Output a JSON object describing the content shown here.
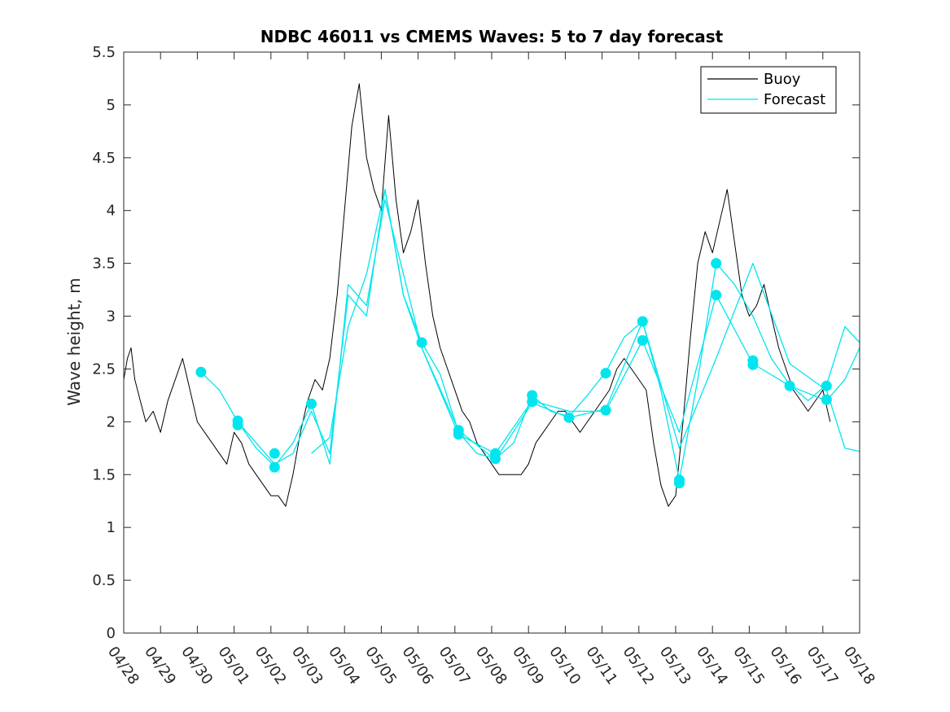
{
  "chart_data": {
    "type": "line",
    "title": "NDBC 46011 vs CMEMS Waves: 5 to 7 day forecast",
    "xlabel": "",
    "ylabel": "Wave height, m",
    "xlim": [
      "04/28",
      "05/18"
    ],
    "ylim": [
      0,
      5.5
    ],
    "yticks": [
      0,
      0.5,
      1,
      1.5,
      2,
      2.5,
      3,
      3.5,
      4,
      4.5,
      5,
      5.5
    ],
    "xtick_labels": [
      "04/28",
      "04/29",
      "04/30",
      "05/01",
      "05/02",
      "05/03",
      "05/04",
      "05/05",
      "05/06",
      "05/07",
      "05/08",
      "05/09",
      "05/10",
      "05/11",
      "05/12",
      "05/13",
      "05/14",
      "05/15",
      "05/16",
      "05/17",
      "05/18"
    ],
    "grid": false,
    "legend": {
      "position": "top-right",
      "entries": [
        {
          "label": "Buoy",
          "color": "#000000"
        },
        {
          "label": "Forecast",
          "color": "#00e5ee"
        }
      ]
    },
    "series": [
      {
        "name": "Buoy",
        "color": "#000000",
        "x": [
          0,
          0.1,
          0.2,
          0.3,
          0.45,
          0.6,
          0.8,
          1.0,
          1.2,
          1.4,
          1.6,
          1.8,
          2.0,
          2.2,
          2.4,
          2.6,
          2.8,
          3.0,
          3.2,
          3.4,
          3.6,
          3.8,
          4.0,
          4.2,
          4.4,
          4.6,
          4.8,
          5.0,
          5.2,
          5.4,
          5.6,
          5.8,
          6.0,
          6.2,
          6.4,
          6.6,
          6.8,
          7.0,
          7.2,
          7.4,
          7.6,
          7.8,
          8.0,
          8.2,
          8.4,
          8.6,
          8.8,
          9.0,
          9.2,
          9.4,
          9.6,
          9.8,
          10.0,
          10.2,
          10.4,
          10.6,
          10.8,
          11.0,
          11.2,
          11.4,
          11.6,
          11.8,
          12.0,
          12.2,
          12.4,
          12.6,
          12.8,
          13.0,
          13.2,
          13.4,
          13.6,
          13.8,
          14.0,
          14.2,
          14.4,
          14.6,
          14.8,
          15.0,
          15.2,
          15.4,
          15.6,
          15.8,
          16.0,
          16.2,
          16.4,
          16.6,
          16.8,
          17.0,
          17.2,
          17.4,
          17.6,
          17.8,
          18.0,
          18.2,
          18.4,
          18.6,
          18.8,
          19.0,
          19.2
        ],
        "y": [
          2.4,
          2.6,
          2.7,
          2.4,
          2.2,
          2.0,
          2.1,
          1.9,
          2.2,
          2.4,
          2.6,
          2.3,
          2.0,
          1.9,
          1.8,
          1.7,
          1.6,
          1.9,
          1.8,
          1.6,
          1.5,
          1.4,
          1.3,
          1.3,
          1.2,
          1.5,
          1.9,
          2.2,
          2.4,
          2.3,
          2.6,
          3.2,
          4.0,
          4.8,
          5.2,
          4.5,
          4.2,
          4.0,
          4.9,
          4.1,
          3.6,
          3.8,
          4.1,
          3.5,
          3.0,
          2.7,
          2.5,
          2.3,
          2.1,
          2.0,
          1.8,
          1.7,
          1.6,
          1.5,
          1.5,
          1.5,
          1.5,
          1.6,
          1.8,
          1.9,
          2.0,
          2.1,
          2.1,
          2.0,
          1.9,
          2.0,
          2.1,
          2.2,
          2.3,
          2.5,
          2.6,
          2.5,
          2.4,
          2.3,
          1.8,
          1.4,
          1.2,
          1.3,
          2.0,
          2.8,
          3.5,
          3.8,
          3.6,
          3.9,
          4.2,
          3.7,
          3.2,
          3.0,
          3.1,
          3.3,
          3.0,
          2.7,
          2.5,
          2.3,
          2.2,
          2.1,
          2.2,
          2.3,
          2.0
        ]
      },
      {
        "name": "Forecast",
        "color": "#00e5ee",
        "x": [
          2.1,
          2.6,
          3.1,
          3.6,
          4.1,
          4.6,
          5.1,
          5.6,
          6.1,
          6.6,
          7.1,
          7.6,
          8.1,
          8.6,
          9.1,
          9.6,
          10.1,
          10.6,
          11.1,
          11.6,
          12.1,
          12.6,
          13.1,
          13.6,
          14.1,
          14.6,
          15.1,
          15.6,
          16.1,
          16.6,
          17.1,
          17.6,
          18.1,
          18.6,
          19.1,
          19.6,
          20.0
        ],
        "y": [
          2.47,
          2.3,
          2.0,
          1.8,
          1.6,
          1.7,
          2.1,
          1.7,
          3.2,
          3.0,
          4.2,
          3.2,
          2.75,
          2.45,
          1.9,
          1.7,
          1.65,
          1.8,
          2.25,
          2.1,
          2.05,
          2.25,
          2.47,
          2.8,
          2.95,
          2.3,
          1.45,
          2.4,
          3.5,
          3.3,
          3.0,
          2.6,
          2.35,
          2.2,
          2.35,
          2.9,
          2.75
        ]
      },
      {
        "name": "Forecast",
        "color": "#00e5ee",
        "x": [
          3.1,
          3.6,
          4.1,
          4.6,
          5.1,
          5.6,
          6.1,
          6.6,
          7.1,
          8.1,
          9.1,
          10.1,
          11.1,
          12.1,
          13.1,
          14.1,
          15.1,
          16.1,
          17.1,
          18.1,
          19.1,
          19.6,
          20.0
        ],
        "y": [
          2.0,
          1.75,
          1.58,
          1.8,
          2.17,
          1.6,
          3.3,
          3.1,
          4.1,
          2.7,
          1.88,
          1.7,
          2.2,
          2.1,
          2.1,
          2.77,
          1.9,
          3.2,
          2.55,
          2.34,
          2.2,
          2.4,
          2.7
        ]
      },
      {
        "name": "Forecast",
        "color": "#00e5ee",
        "x": [
          5.1,
          5.6,
          6.1,
          6.6,
          7.1,
          7.6,
          8.1,
          9.1,
          10.1,
          11.1,
          12.1,
          13.1,
          14.1,
          15.1,
          16.1,
          17.1,
          18.1,
          19.1,
          19.6,
          20.0
        ],
        "y": [
          1.7,
          1.85,
          2.9,
          3.4,
          4.2,
          3.2,
          2.7,
          1.92,
          1.64,
          2.18,
          2.04,
          2.12,
          2.95,
          1.75,
          2.6,
          3.5,
          2.55,
          2.3,
          1.75,
          1.72
        ]
      }
    ],
    "forecast_start_markers": {
      "x": [
        2.1,
        3.1,
        3.1,
        4.1,
        4.1,
        5.1,
        8.1,
        9.1,
        9.1,
        10.1,
        10.1,
        11.1,
        11.1,
        12.1,
        13.1,
        13.1,
        14.1,
        14.1,
        15.1,
        15.1,
        16.1,
        16.1,
        17.1,
        17.1,
        18.1,
        19.1,
        19.1
      ],
      "y": [
        2.47,
        2.01,
        1.97,
        1.7,
        1.57,
        2.17,
        2.75,
        1.92,
        1.88,
        1.7,
        1.65,
        2.25,
        2.19,
        2.04,
        2.46,
        2.11,
        2.95,
        2.77,
        1.45,
        1.42,
        3.5,
        3.2,
        2.58,
        2.54,
        2.34,
        2.34,
        2.21
      ],
      "color": "#00e5ee"
    }
  }
}
